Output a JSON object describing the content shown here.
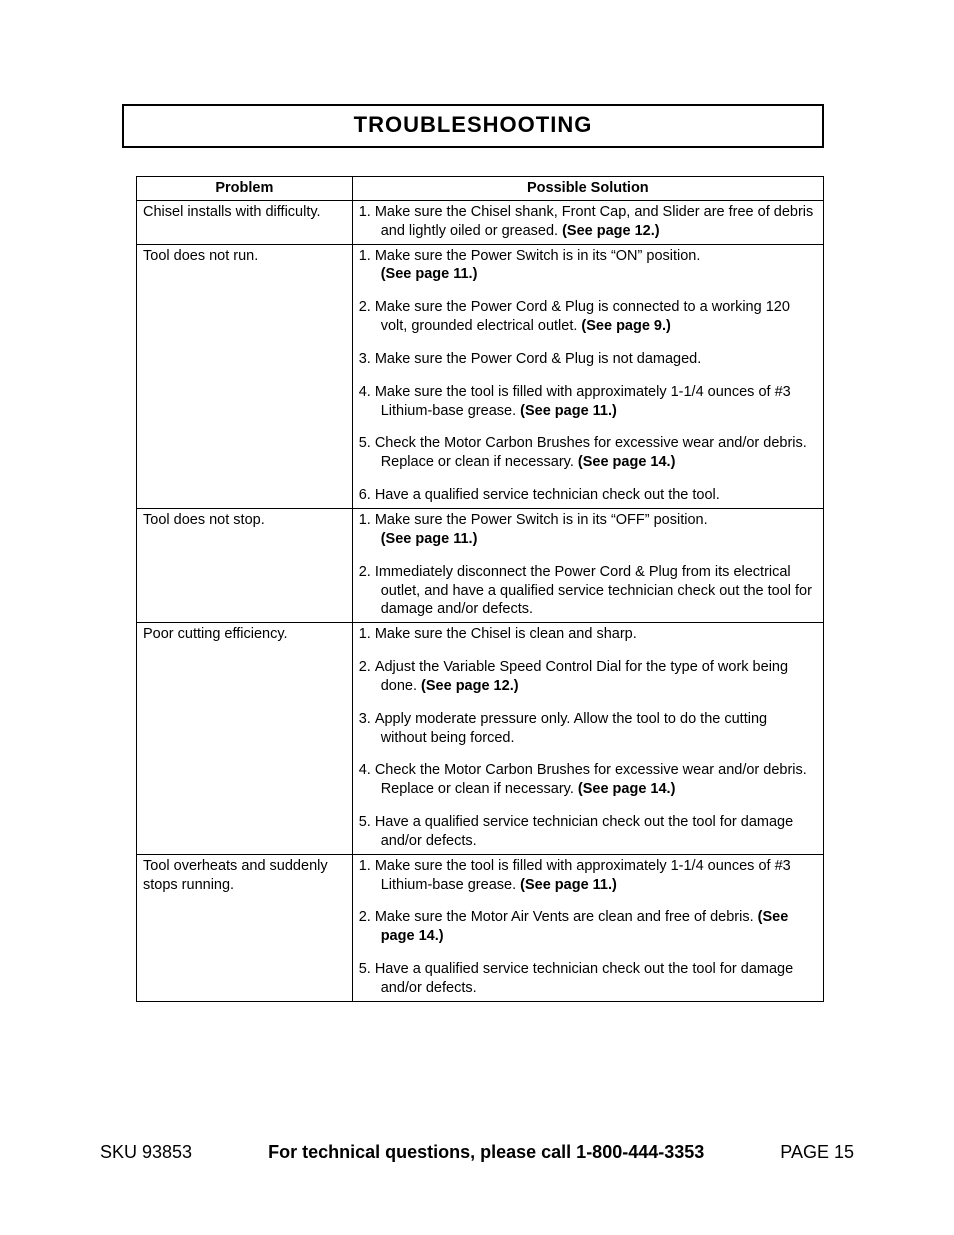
{
  "title": "TROUBLESHOOTING",
  "table": {
    "headers": {
      "problem": "Problem",
      "solution": "Possible Solution"
    },
    "rows": [
      {
        "problem": "Chisel installs with difficulty.",
        "solutions": [
          {
            "num": "1.",
            "text": "Make sure the Chisel shank, Front Cap, and Slider are free of debris and lightly oiled or greased.  ",
            "bold": "(See page 12.)"
          }
        ]
      },
      {
        "problem": "Tool does not run.",
        "solutions": [
          {
            "num": "1.",
            "text": "Make sure the Power Switch is in its “ON” position.",
            "bold_newline": "(See page 11.)"
          },
          {
            "num": "2.",
            "text": "Make sure the Power Cord & Plug is connected to a working 120 volt, grounded electrical outlet.  ",
            "bold": "(See page 9.)"
          },
          {
            "num": "3.",
            "text": "Make sure the Power Cord & Plug is not damaged."
          },
          {
            "num": "4.",
            "text": "Make sure the tool is filled with approximately 1-1/4 ounces of #3 Lithium-base grease.  ",
            "bold": "(See page 11.)"
          },
          {
            "num": "5.",
            "text": "Check the Motor Carbon Brushes for excessive wear and/or debris.  Replace or clean if necessary.  ",
            "bold": "(See page 14.)"
          },
          {
            "num": "6.",
            "text": "Have a qualified service technician check out the tool."
          }
        ]
      },
      {
        "problem": "Tool does not stop.",
        "solutions": [
          {
            "num": "1.",
            "text": "Make sure the Power Switch is in its “OFF” position.",
            "bold_newline": "(See page 11.)"
          },
          {
            "num": "2.",
            "text": "Immediately disconnect the Power Cord & Plug from its electrical outlet, and have a qualified service technician check out the tool for damage and/or defects."
          }
        ]
      },
      {
        "problem": "Poor cutting efficiency.",
        "solutions": [
          {
            "num": "1.",
            "text": "Make sure the Chisel is clean and sharp."
          },
          {
            "num": "2.",
            "text": "Adjust the Variable Speed Control Dial for the type of work being done.  ",
            "bold": "(See page 12.)"
          },
          {
            "num": "3.",
            "text": "Apply moderate pressure only.  Allow the tool to do the cutting without being forced."
          },
          {
            "num": "4.",
            "text": "Check the Motor Carbon Brushes for excessive wear and/or debris.  Replace or clean if necessary.  ",
            "bold": "(See page 14.)"
          },
          {
            "num": "5.",
            "text": "Have a qualified service technician check out the tool for damage and/or defects."
          }
        ]
      },
      {
        "problem": "Tool overheats and suddenly stops running.",
        "solutions": [
          {
            "num": "1.",
            "text": "Make sure the tool is filled with approximately 1-1/4 ounces of #3 Lithium-base grease.  ",
            "bold": "(See page 11.)"
          },
          {
            "num": "2.",
            "text": "Make sure the Motor Air Vents are clean and free of debris.  ",
            "bold": "(See page 14.)"
          },
          {
            "num": "5.",
            "text": "Have a qualified service technician check out the tool for damage and/or defects."
          }
        ]
      }
    ]
  },
  "footer": {
    "sku": "SKU 93853",
    "tech": "For technical questions, please call 1-800-444-3353",
    "page": "PAGE 15"
  }
}
